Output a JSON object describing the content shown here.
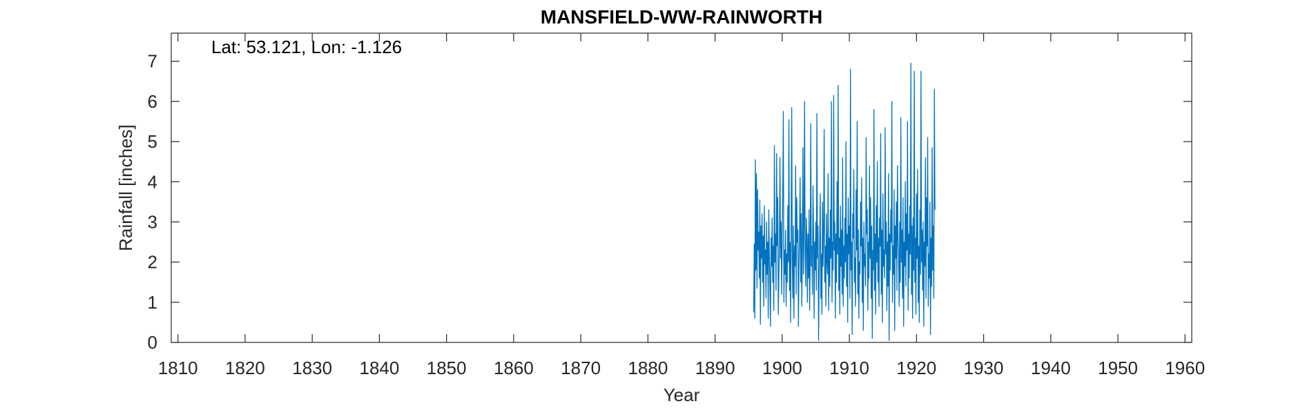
{
  "chart_data": {
    "type": "line",
    "title": "MANSFIELD-WW-RAINWORTH",
    "annotation": "Lat: 53.121, Lon: -1.126",
    "xlabel": "Year",
    "ylabel": "Rainfall [inches]",
    "xlim": [
      1809,
      1961
    ],
    "ylim": [
      0,
      7.7
    ],
    "x_ticks": [
      1810,
      1820,
      1830,
      1840,
      1850,
      1860,
      1870,
      1880,
      1890,
      1900,
      1910,
      1920,
      1930,
      1940,
      1950,
      1960
    ],
    "y_ticks": [
      0,
      1,
      2,
      3,
      4,
      5,
      6,
      7
    ],
    "grid": false,
    "series": [
      {
        "color": "#0072BD",
        "x_start": 1895.75,
        "x_step": 0.0833333,
        "values": [
          0.75,
          2.45,
          0.6,
          4.55,
          1.8,
          4.2,
          1.35,
          3.8,
          2.3,
          2.75,
          1.6,
          3.55,
          0.45,
          2.9,
          2.1,
          3.2,
          1.5,
          2.65,
          0.9,
          3.4,
          1.95,
          2.3,
          1.1,
          3.0,
          1.7,
          2.5,
          0.6,
          3.3,
          2.2,
          1.4,
          0.4,
          2.6,
          1.9,
          3.1,
          1.5,
          2.4,
          0.8,
          4.9,
          2.0,
          2.7,
          1.3,
          4.7,
          2.4,
          3.6,
          0.7,
          1.6,
          2.5,
          4.6,
          2.1,
          3.0,
          1.2,
          2.6,
          3.8,
          5.75,
          1.0,
          2.3,
          1.7,
          2.8,
          0.9,
          2.2,
          1.5,
          3.4,
          2.0,
          5.55,
          1.3,
          2.5,
          0.5,
          3.0,
          5.85,
          2.0,
          1.1,
          2.9,
          0.6,
          2.4,
          1.9,
          4.4,
          1.2,
          3.6,
          2.5,
          2.8,
          0.4,
          1.9,
          2.7,
          4.1,
          1.5,
          3.2,
          0.9,
          2.3,
          4.85,
          1.7,
          2.9,
          6.0,
          2.2,
          1.4,
          3.1,
          2.6,
          1.0,
          2.7,
          1.6,
          3.3,
          0.8,
          2.0,
          5.45,
          1.9,
          2.4,
          1.2,
          3.9,
          2.8,
          0.6,
          2.5,
          1.8,
          3.0,
          1.3,
          5.7,
          2.1,
          2.9,
          0.05,
          1.6,
          2.6,
          3.7,
          1.1,
          2.2,
          0.7,
          3.5,
          1.9,
          2.8,
          5.3,
          1.5,
          2.4,
          0.9,
          3.2,
          2.0,
          1.7,
          4.2,
          0.8,
          2.6,
          1.4,
          3.3,
          2.1,
          6.0,
          1.0,
          2.5,
          1.8,
          6.15,
          2.3,
          3.0,
          0.6,
          2.7,
          1.5,
          4.0,
          2.2,
          6.4,
          1.3,
          2.6,
          0.7,
          3.4,
          1.9,
          2.8,
          1.2,
          4.6,
          0.9,
          2.4,
          1.6,
          3.1,
          2.0,
          5.0,
          1.4,
          2.7,
          0.5,
          3.6,
          2.2,
          2.9,
          1.1,
          6.8,
          1.8,
          2.5,
          0.2,
          3.2,
          2.6,
          4.3,
          1.5,
          2.1,
          0.9,
          3.8,
          2.3,
          5.5,
          1.2,
          2.8,
          0.6,
          2.0,
          1.7,
          3.5,
          2.4,
          4.1,
          1.0,
          2.6,
          0.3,
          3.0,
          1.9,
          2.2,
          1.4,
          5.1,
          2.7,
          3.3,
          0.8,
          2.5,
          1.6,
          4.4,
          2.1,
          3.6,
          1.1,
          2.9,
          0.1,
          2.3,
          1.8,
          5.8,
          1.3,
          2.7,
          0.7,
          3.4,
          2.0,
          4.5,
          1.5,
          2.6,
          0.9,
          3.1,
          2.4,
          5.2,
          1.2,
          2.8,
          0.5,
          3.7,
          1.9,
          2.3,
          1.6,
          5.35,
          2.2,
          3.0,
          0.8,
          2.5,
          1.4,
          4.2,
          0.05,
          2.7,
          1.8,
          3.3,
          2.5,
          6.0,
          1.0,
          2.4,
          1.7,
          3.8,
          0.3,
          2.9,
          2.1,
          3.5,
          1.3,
          4.4,
          2.6,
          2.2,
          0.9,
          3.0,
          1.5,
          5.6,
          2.0,
          2.8,
          1.1,
          3.6,
          0.4,
          2.5,
          1.9,
          4.0,
          1.4,
          3.2,
          2.3,
          5.5,
          0.8,
          2.7,
          1.6,
          3.4,
          2.2,
          6.95,
          1.2,
          2.9,
          0.6,
          3.1,
          1.8,
          6.75,
          1.5,
          2.6,
          0.7,
          3.7,
          2.1,
          4.3,
          1.0,
          2.4,
          0.5,
          3.3,
          1.7,
          6.75,
          2.0,
          2.8,
          1.3,
          3.0,
          0.4,
          2.5,
          1.9,
          4.6,
          1.1,
          3.6,
          2.4,
          5.1,
          0.9,
          2.2,
          1.6,
          3.5,
          0.2,
          2.6,
          1.4,
          4.85,
          1.8,
          2.9,
          1.1,
          6.3,
          3.3
        ]
      }
    ]
  }
}
